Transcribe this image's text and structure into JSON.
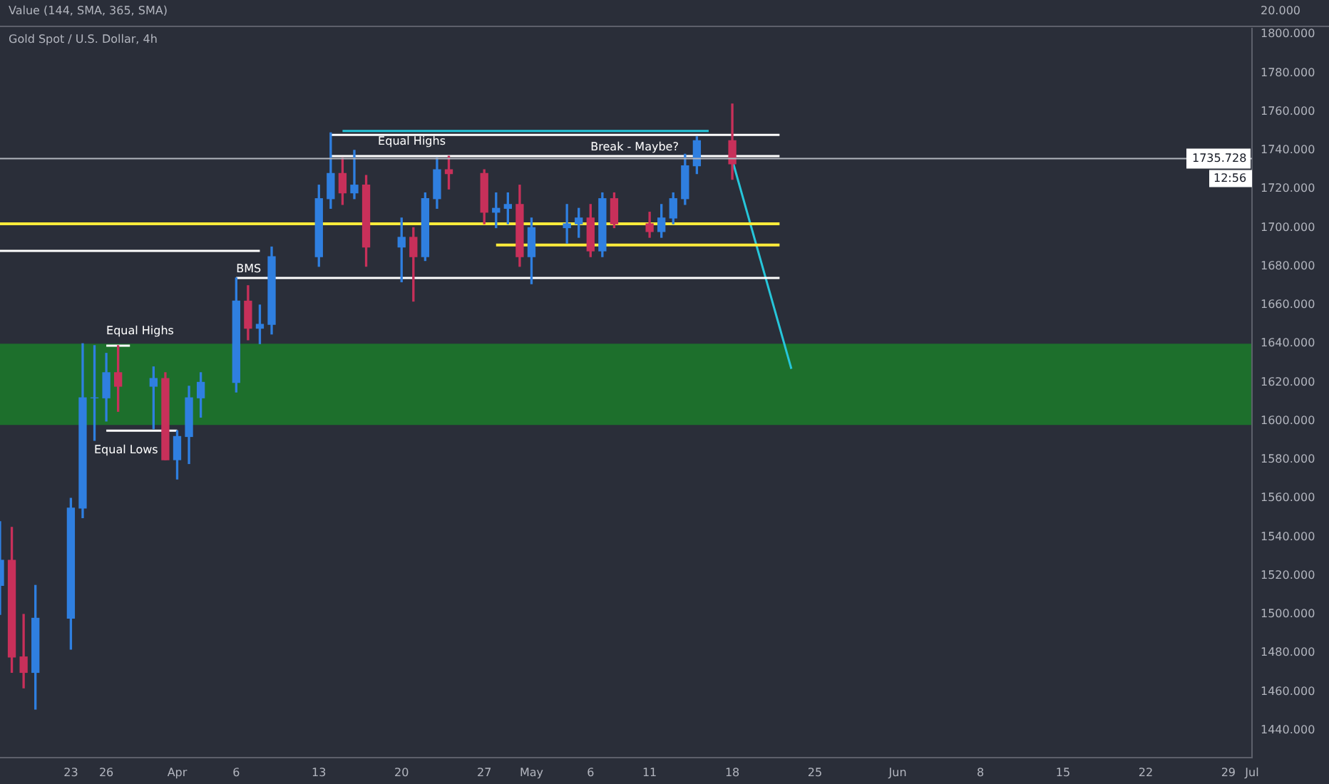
{
  "chart_data": {
    "type": "candlestick",
    "title": "Gold Spot / U.S. Dollar, 4h",
    "subtitle": "Value (144, SMA, 365, SMA)",
    "x": [
      "--03-17",
      "--03-18",
      "--03-19",
      "--03-20",
      "--03-23",
      "--03-24",
      "--03-25",
      "--03-26",
      "--03-27",
      "--03-30",
      "--03-31",
      "--04-01",
      "--04-02",
      "--04-03",
      "--04-06",
      "--04-07",
      "--04-08",
      "--04-09",
      "--04-13",
      "--04-14",
      "--04-15",
      "--04-16",
      "--04-17",
      "--04-20",
      "--04-21",
      "--04-22",
      "--04-23",
      "--04-24",
      "--04-27",
      "--04-28",
      "--04-29",
      "--04-30",
      "--05-01",
      "--05-04",
      "--05-05",
      "--05-06",
      "--05-07",
      "--05-08",
      "--05-11",
      "--05-12",
      "--05-13",
      "--05-14",
      "--05-15",
      "--05-18"
    ],
    "ohlc": [
      [
        1515,
        1548,
        1500,
        1528
      ],
      [
        1528,
        1545,
        1470,
        1478
      ],
      [
        1478,
        1500,
        1462,
        1470
      ],
      [
        1470,
        1515,
        1451,
        1498
      ],
      [
        1498,
        1560,
        1482,
        1555
      ],
      [
        1555,
        1640,
        1550,
        1612
      ],
      [
        1612,
        1639,
        1590,
        1612
      ],
      [
        1612,
        1635,
        1600,
        1625
      ],
      [
        1625,
        1639,
        1605,
        1618
      ],
      [
        1618,
        1628,
        1596,
        1622
      ],
      [
        1622,
        1625,
        1580,
        1580
      ],
      [
        1580,
        1595,
        1570,
        1592
      ],
      [
        1592,
        1618,
        1578,
        1612
      ],
      [
        1612,
        1625,
        1602,
        1620
      ],
      [
        1620,
        1674,
        1615,
        1662
      ],
      [
        1662,
        1670,
        1642,
        1648
      ],
      [
        1648,
        1660,
        1640,
        1650
      ],
      [
        1650,
        1690,
        1645,
        1685
      ],
      [
        1685,
        1722,
        1680,
        1715
      ],
      [
        1715,
        1749,
        1710,
        1728
      ],
      [
        1728,
        1736,
        1712,
        1718
      ],
      [
        1718,
        1740,
        1715,
        1722
      ],
      [
        1722,
        1727,
        1680,
        1690
      ],
      [
        1690,
        1705,
        1672,
        1695
      ],
      [
        1695,
        1700,
        1662,
        1685
      ],
      [
        1685,
        1718,
        1683,
        1715
      ],
      [
        1715,
        1736,
        1710,
        1730
      ],
      [
        1730,
        1737,
        1720,
        1728
      ],
      [
        1728,
        1730,
        1702,
        1708
      ],
      [
        1708,
        1718,
        1700,
        1710
      ],
      [
        1710,
        1718,
        1702,
        1712
      ],
      [
        1712,
        1722,
        1680,
        1685
      ],
      [
        1685,
        1705,
        1671,
        1700
      ],
      [
        1700,
        1712,
        1692,
        1702
      ],
      [
        1702,
        1710,
        1695,
        1705
      ],
      [
        1705,
        1712,
        1685,
        1688
      ],
      [
        1688,
        1718,
        1685,
        1715
      ],
      [
        1715,
        1718,
        1700,
        1702
      ],
      [
        1702,
        1708,
        1695,
        1698
      ],
      [
        1698,
        1712,
        1695,
        1705
      ],
      [
        1705,
        1718,
        1702,
        1715
      ],
      [
        1715,
        1738,
        1712,
        1732
      ],
      [
        1732,
        1747,
        1728,
        1745
      ],
      [
        1745,
        1764,
        1725,
        1733
      ]
    ],
    "series": [
      {
        "type": "line",
        "x": [
          "--03-17",
          "--05-22"
        ],
        "values": [
          1702,
          1702
        ],
        "color": "#ffeb3b"
      },
      {
        "type": "line",
        "x": [
          "--04-28",
          "--05-22"
        ],
        "values": [
          1691,
          1691
        ],
        "color": "#ffeb3b"
      },
      {
        "type": "line",
        "x": [
          "--03-17",
          "--04-08"
        ],
        "values": [
          1688,
          1688
        ],
        "color": "#ffffff"
      },
      {
        "type": "line",
        "x": [
          "--04-06",
          "--05-22"
        ],
        "values": [
          1674,
          1674
        ],
        "color": "#ffffff"
      },
      {
        "type": "line",
        "x": [
          "--04-14",
          "--05-22"
        ],
        "values": [
          1737,
          1737
        ],
        "color": "#ffffff"
      },
      {
        "type": "line",
        "x": [
          "--04-14",
          "--05-22"
        ],
        "values": [
          1748,
          1748
        ],
        "color": "#ffffff"
      },
      {
        "type": "line",
        "x": [
          "--03-26",
          "--03-28"
        ],
        "values": [
          1639,
          1639
        ],
        "color": "#ffffff"
      },
      {
        "type": "line",
        "x": [
          "--03-26",
          "--04-01"
        ],
        "values": [
          1595,
          1595
        ],
        "color": "#ffffff"
      },
      {
        "type": "line",
        "x": [
          "--04-15",
          "--05-16"
        ],
        "values": [
          1750,
          1750
        ],
        "color": "#26c6da"
      },
      {
        "type": "line",
        "x": [
          "--05-18",
          "--05-23"
        ],
        "values": [
          1735,
          1627
        ],
        "color": "#26c6da"
      }
    ],
    "bands": [
      {
        "axis": "y",
        "from": 1598,
        "to": 1640,
        "color": "#1b7a2a"
      }
    ],
    "ref_lines": [
      {
        "axis": "y",
        "value": 1735.728,
        "label": "1735.728",
        "color": "#b2b5be"
      }
    ],
    "annotations": [
      {
        "text": "Equal Highs",
        "x": "--03-26",
        "y": 1642
      },
      {
        "text": "BMS",
        "x": "--04-06",
        "y": 1674
      },
      {
        "text": "Equal Highs",
        "x": "--04-18",
        "y": 1740
      },
      {
        "text": "Break - Maybe?",
        "x": "--05-06",
        "y": 1737
      },
      "20.000",
      "12:56",
      "Equal Lows"
    ],
    "xlim": [
      "--03-17",
      "--07-01"
    ],
    "xticks": [
      {
        "value": "--03-23",
        "label": "23"
      },
      {
        "value": "--03-26",
        "label": "26"
      },
      {
        "value": "--04-01",
        "label": "Apr"
      },
      {
        "value": "--04-06",
        "label": "6"
      },
      {
        "value": "--04-13",
        "label": "13"
      },
      {
        "value": "--04-20",
        "label": "20"
      },
      {
        "value": "--04-27",
        "label": "27"
      },
      {
        "value": "--05-01",
        "label": "May"
      },
      {
        "value": "--05-06",
        "label": "6"
      },
      {
        "value": "--05-11",
        "label": "11"
      },
      {
        "value": "--05-18",
        "label": "18"
      },
      {
        "value": "--05-25",
        "label": "25"
      },
      {
        "value": "--06-01",
        "label": "Jun"
      },
      {
        "value": "--06-08",
        "label": "8"
      },
      {
        "value": "--06-15",
        "label": "15"
      },
      {
        "value": "--06-22",
        "label": "22"
      },
      {
        "value": "--06-29",
        "label": "29"
      },
      {
        "value": "--07-01",
        "label": "Jul"
      }
    ],
    "ylim": [
      1426,
      1803
    ],
    "yticks": [
      {
        "value": 1440,
        "label": "1440.000"
      },
      {
        "value": 1460,
        "label": "1460.000"
      },
      {
        "value": 1480,
        "label": "1480.000"
      },
      {
        "value": 1500,
        "label": "1500.000"
      },
      {
        "value": 1520,
        "label": "1520.000"
      },
      {
        "value": 1540,
        "label": "1540.000"
      },
      {
        "value": 1560,
        "label": "1560.000"
      },
      {
        "value": 1580,
        "label": "1580.000"
      },
      {
        "value": 1600,
        "label": "1600.000"
      },
      {
        "value": 1620,
        "label": "1620.000"
      },
      {
        "value": 1640,
        "label": "1640.000"
      },
      {
        "value": 1660,
        "label": "1660.000"
      },
      {
        "value": 1680,
        "label": "1680.000"
      },
      {
        "value": 1700,
        "label": "1700.000"
      },
      {
        "value": 1720,
        "label": "1720.000"
      },
      {
        "value": 1740,
        "label": "1740.000"
      },
      {
        "value": 1760,
        "label": "1760.000"
      },
      {
        "value": 1780,
        "label": "1780.000"
      },
      {
        "value": 1800,
        "label": "1800.000"
      }
    ],
    "grid": false,
    "legend": false
  }
}
